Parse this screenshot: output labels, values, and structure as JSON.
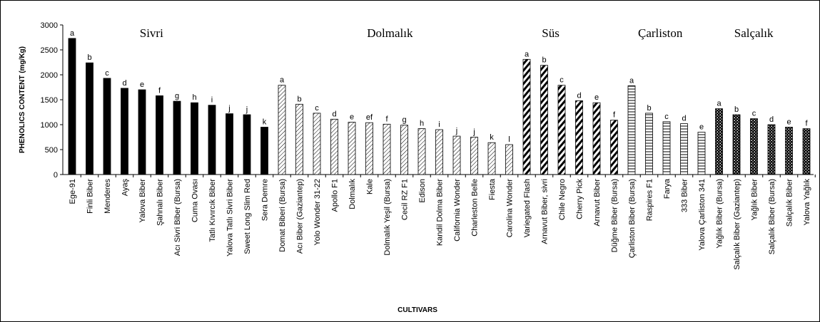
{
  "chart_data": {
    "type": "bar",
    "y_label": "PHENOLICS CONTENT (mg/Kg)",
    "x_label": "CULTIVARS",
    "ylim": [
      0,
      3000
    ],
    "yticks": [
      0,
      500,
      1000,
      1500,
      2000,
      2500,
      3000
    ],
    "series": [
      {
        "name": "Sivri",
        "pattern": "solid",
        "color": "#000000",
        "categories": [
          "Ege-91",
          "Finli Biber",
          "Menderes",
          "Ayaş",
          "Yalova Biber",
          "Şahnalı Biber",
          "Acı Sivri Biber (Bursa)",
          "Cuma Ovası",
          "Tatlı Kıvırcık Biber",
          "Yalova Tatlı Sivri Biber",
          "Sweet Long Slim Red",
          "Sera Demre"
        ],
        "values": [
          2730,
          2240,
          1930,
          1730,
          1700,
          1580,
          1470,
          1440,
          1390,
          1220,
          1200,
          950
        ],
        "letters": [
          "a",
          "b",
          "c",
          "d",
          "e",
          "f",
          "g",
          "h",
          "i",
          "j",
          "j",
          "k"
        ]
      },
      {
        "name": "Dolmalık",
        "pattern": "thin-diagonal",
        "color": "#000000",
        "categories": [
          "Domat Biberi (Bursa)",
          "Acı Biber (Gaziantep)",
          "Yolo Wonder 31-22",
          "Apollo F1",
          "Dolmalık",
          "Kale",
          "Dolmalık Yeşil (Bursa)",
          "Cecil RZ F1",
          "Edison",
          "Kandil Dolma Biber",
          "California Wonder",
          "Charleston Belle",
          "Fiesta",
          "Carolina Wonder"
        ],
        "values": [
          1790,
          1410,
          1230,
          1110,
          1050,
          1040,
          1010,
          990,
          920,
          900,
          770,
          750,
          640,
          600
        ],
        "letters": [
          "a",
          "b",
          "c",
          "d",
          "e",
          "ef",
          "f",
          "g",
          "h",
          "i",
          "j",
          "j",
          "k",
          "l"
        ]
      },
      {
        "name": "Süs",
        "pattern": "bold-diagonal",
        "color": "#000000",
        "categories": [
          "Variegated Flash",
          "Arnavut Biber, sivri",
          "Chile Negro",
          "Cherry Pick",
          "Arnavut Biber",
          "Düğme Biber (Bursa)"
        ],
        "values": [
          2310,
          2190,
          1790,
          1480,
          1440,
          1090
        ],
        "letters": [
          "a",
          "b",
          "c",
          "d",
          "e",
          "f"
        ]
      },
      {
        "name": "Çarliston",
        "pattern": "horizontal",
        "color": "#000000",
        "categories": [
          "Çarliston Biber (Bursa)",
          "Raspires F1",
          "Farya",
          "333 Biber",
          "Yalova Çarliston 341"
        ],
        "values": [
          1780,
          1230,
          1060,
          1020,
          850
        ],
        "letters": [
          "a",
          "b",
          "c",
          "d",
          "e"
        ]
      },
      {
        "name": "Salçalık",
        "pattern": "dots",
        "color": "#000000",
        "categories": [
          "Yağlık Biber (Bursa)",
          "Salçalık Biber (Gaziantep)",
          "Yağlık Biber",
          "Salçalık Biber (Bursa)",
          "Salçalık Biber",
          "Yalova Yağlık"
        ],
        "values": [
          1320,
          1200,
          1120,
          1000,
          950,
          920
        ],
        "letters": [
          "a",
          "b",
          "c",
          "d",
          "e",
          "f"
        ]
      }
    ]
  }
}
